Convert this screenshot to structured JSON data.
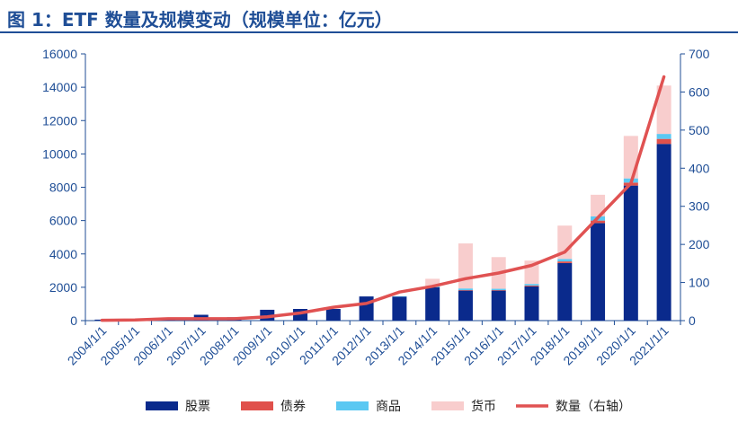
{
  "title": "图 1：ETF 数量及规模变动（规模单位：亿元）",
  "colors": {
    "title": "#1f4e96",
    "axis": "#1f4e96",
    "stock": "#0a2a8c",
    "bond": "#e0504b",
    "commodity": "#5bc8f2",
    "money": "#f8cdcd",
    "count_line": "#e05252"
  },
  "chart_data": {
    "type": "bar",
    "stacked": true,
    "title": "ETF 数量及规模变动（规模单位：亿元）",
    "categories": [
      "2004/1/1",
      "2005/1/1",
      "2006/1/1",
      "2007/1/1",
      "2008/1/1",
      "2009/1/1",
      "2010/1/1",
      "2011/1/1",
      "2012/1/1",
      "2013/1/1",
      "2014/1/1",
      "2015/1/1",
      "2016/1/1",
      "2017/1/1",
      "2018/1/1",
      "2019/1/1",
      "2020/1/1",
      "2021/1/1"
    ],
    "series": [
      {
        "name": "股票",
        "key": "stock",
        "axis": "left",
        "type": "bar",
        "values": [
          60,
          100,
          170,
          350,
          200,
          650,
          700,
          700,
          1450,
          1450,
          2000,
          1800,
          1800,
          2050,
          3450,
          5850,
          8100,
          10600
        ]
      },
      {
        "name": "债券",
        "key": "bond",
        "axis": "left",
        "type": "bar",
        "values": [
          0,
          0,
          0,
          0,
          0,
          0,
          0,
          0,
          0,
          0,
          0,
          30,
          30,
          50,
          100,
          150,
          180,
          300
        ]
      },
      {
        "name": "商品",
        "key": "commodity",
        "axis": "left",
        "type": "bar",
        "values": [
          0,
          0,
          0,
          0,
          0,
          0,
          0,
          0,
          0,
          10,
          60,
          100,
          80,
          100,
          150,
          250,
          250,
          300
        ]
      },
      {
        "name": "货币",
        "key": "money",
        "axis": "left",
        "type": "bar",
        "values": [
          0,
          0,
          0,
          0,
          0,
          0,
          0,
          0,
          0,
          0,
          450,
          2700,
          1900,
          1400,
          2000,
          1300,
          2550,
          2900
        ]
      },
      {
        "name": "数量（右轴）",
        "key": "count_line",
        "axis": "right",
        "type": "line",
        "values": [
          1,
          2,
          5,
          5,
          5,
          10,
          20,
          35,
          45,
          75,
          90,
          110,
          125,
          145,
          180,
          270,
          360,
          640
        ]
      }
    ],
    "y_left": {
      "min": 0,
      "max": 16000,
      "ticks": [
        0,
        2000,
        4000,
        6000,
        8000,
        10000,
        12000,
        14000,
        16000
      ]
    },
    "y_right": {
      "min": 0,
      "max": 700,
      "ticks": [
        0,
        100,
        200,
        300,
        400,
        500,
        600,
        700
      ]
    },
    "legend_position": "bottom"
  }
}
